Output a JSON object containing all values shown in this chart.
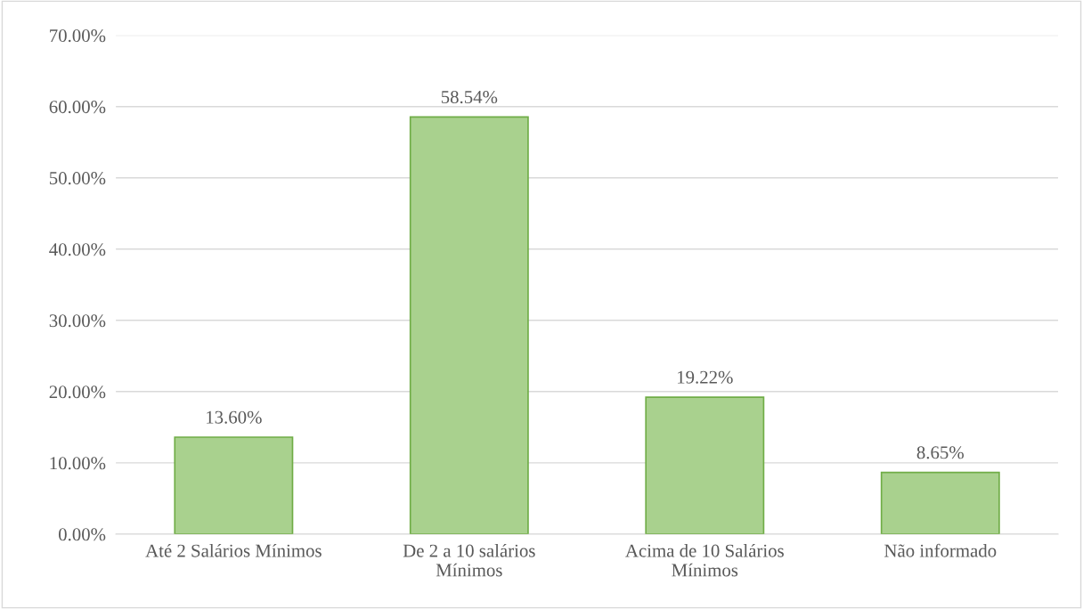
{
  "chart_data": {
    "type": "bar",
    "categories": [
      "Até 2 Salários Mínimos",
      "De 2 a 10 salários\nMínimos",
      "Acima de 10 Salários\nMínimos",
      "Não informado"
    ],
    "values": [
      13.6,
      58.54,
      19.22,
      8.65
    ],
    "value_labels": [
      "13.60%",
      "58.54%",
      "19.22%",
      "8.65%"
    ],
    "color": "#a9d18e",
    "ylim": [
      0,
      70
    ],
    "yticks": [
      {
        "value": 0,
        "label": "0.00%"
      },
      {
        "value": 10,
        "label": "10.00%"
      },
      {
        "value": 20,
        "label": "20.00%"
      },
      {
        "value": 30,
        "label": "30.00%"
      },
      {
        "value": 40,
        "label": "40.00%"
      },
      {
        "value": 50,
        "label": "50.00%"
      },
      {
        "value": 60,
        "label": "60.00%"
      },
      {
        "value": 70,
        "label": "70.00%"
      }
    ],
    "grid": "y",
    "legend": false
  }
}
